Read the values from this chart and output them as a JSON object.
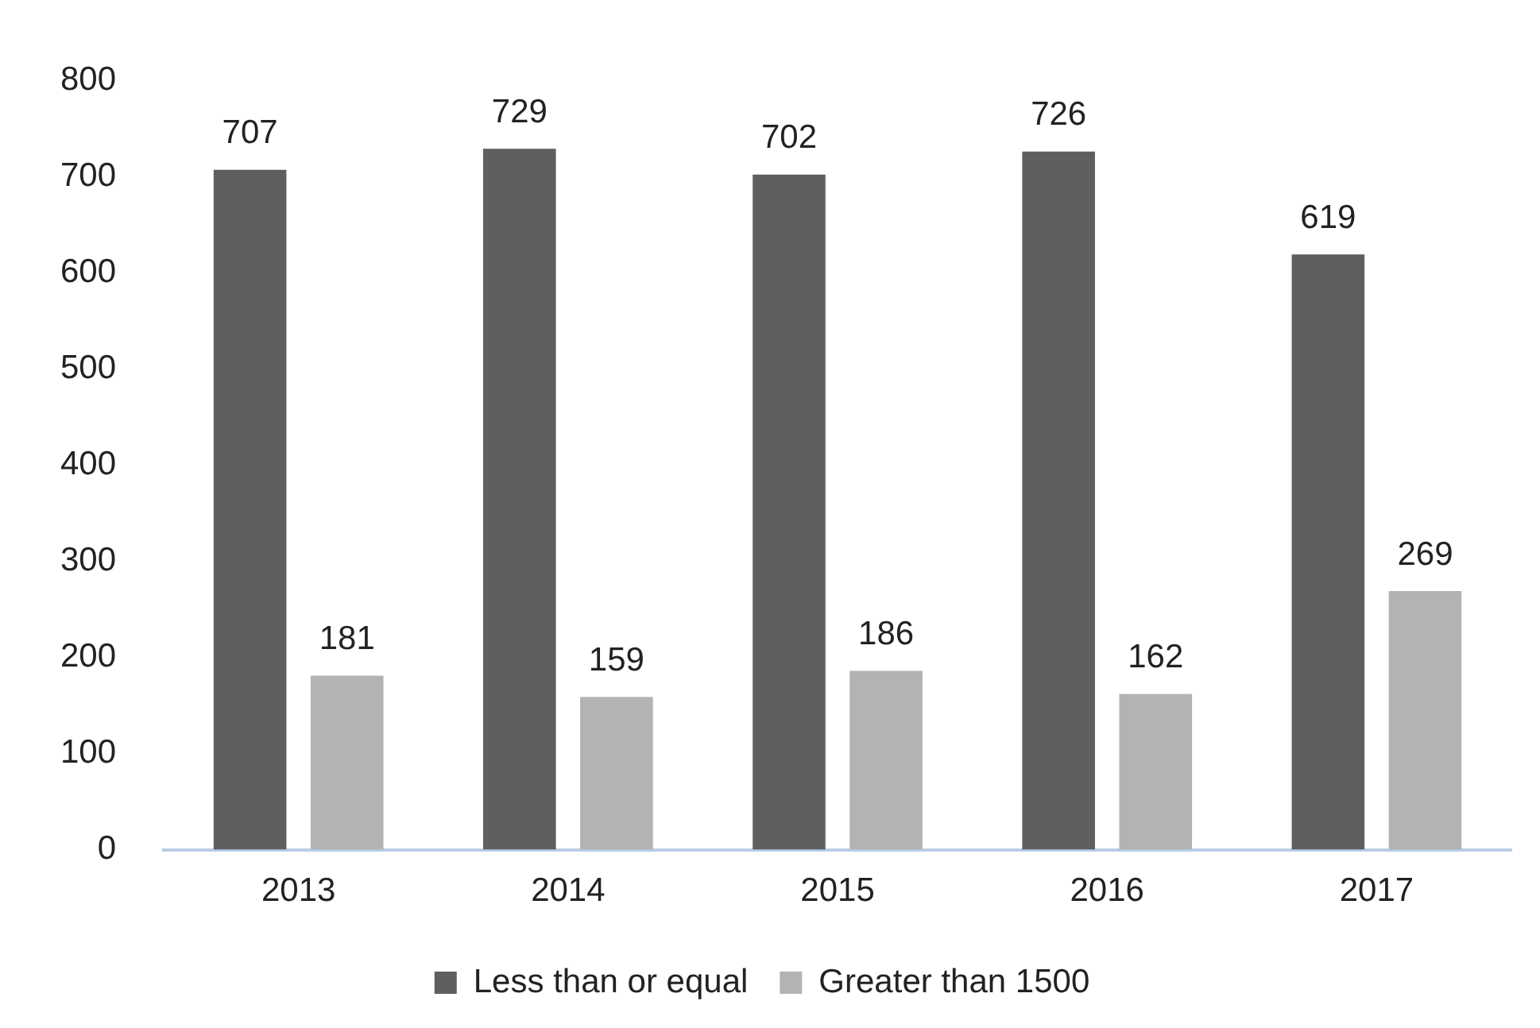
{
  "chart_data": {
    "type": "bar",
    "categories": [
      "2013",
      "2014",
      "2015",
      "2016",
      "2017"
    ],
    "series": [
      {
        "name": "Less than or equal",
        "color": "#5f5f5f",
        "values": [
          707,
          729,
          702,
          726,
          619
        ]
      },
      {
        "name": "Greater than 1500",
        "color": "#b3b3b3",
        "values": [
          181,
          159,
          186,
          162,
          269
        ]
      }
    ],
    "ylim": [
      0,
      800
    ],
    "yticks": [
      0,
      100,
      200,
      300,
      400,
      500,
      600,
      700,
      800
    ],
    "grid": false,
    "legend": "bottom",
    "data_labels": true
  }
}
